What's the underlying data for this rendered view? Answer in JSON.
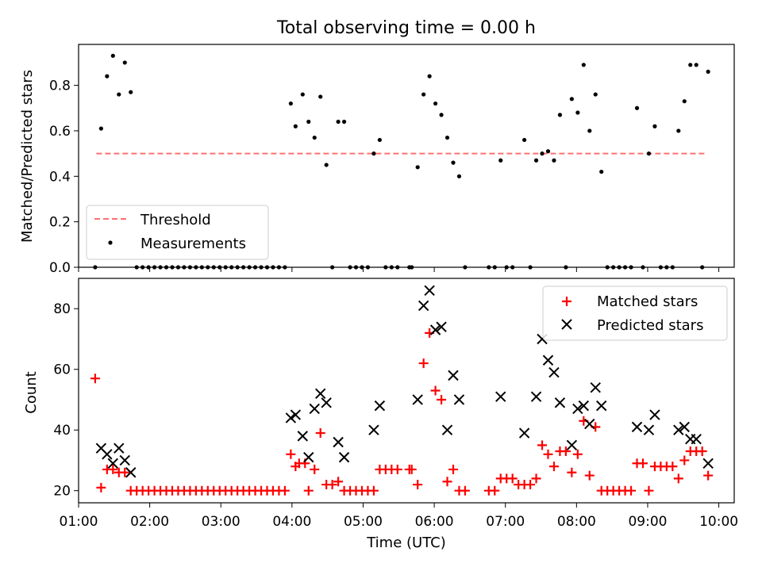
{
  "chart_data": [
    {
      "type": "scatter",
      "title": "Total observing time = 0.00 h",
      "xlabel": "",
      "ylabel": "Matched/Predicted stars",
      "xlim": [
        "01:00",
        "10:13"
      ],
      "ylim": [
        0,
        0.98
      ],
      "yticks": [
        0.0,
        0.2,
        0.4,
        0.6,
        0.8
      ],
      "ytick_labels": [
        "0.0",
        "0.2",
        "0.4",
        "0.6",
        "0.8"
      ],
      "legend": {
        "position": "lower-left",
        "entries": [
          "Threshold",
          "Measurements"
        ]
      },
      "threshold": {
        "name": "Threshold",
        "value": 0.5,
        "x_range": [
          "01:15",
          "09:50"
        ],
        "color": "#ff7070",
        "style": "dashed"
      },
      "series": [
        {
          "name": "Measurements",
          "color": "#000000",
          "marker": "dot",
          "points": [
            [
              "01:14",
              0.0
            ],
            [
              "01:19",
              0.61
            ],
            [
              "01:24",
              0.84
            ],
            [
              "01:29",
              0.93
            ],
            [
              "01:34",
              0.76
            ],
            [
              "01:39",
              0.9
            ],
            [
              "01:44",
              0.77
            ],
            [
              "01:49",
              0.0
            ],
            [
              "01:54",
              0.0
            ],
            [
              "01:59",
              0.0
            ],
            [
              "02:04",
              0.0
            ],
            [
              "02:09",
              0.0
            ],
            [
              "02:14",
              0.0
            ],
            [
              "02:19",
              0.0
            ],
            [
              "02:24",
              0.0
            ],
            [
              "02:29",
              0.0
            ],
            [
              "02:34",
              0.0
            ],
            [
              "02:39",
              0.0
            ],
            [
              "02:44",
              0.0
            ],
            [
              "02:49",
              0.0
            ],
            [
              "02:54",
              0.0
            ],
            [
              "02:59",
              0.0
            ],
            [
              "03:04",
              0.0
            ],
            [
              "03:09",
              0.0
            ],
            [
              "03:14",
              0.0
            ],
            [
              "03:19",
              0.0
            ],
            [
              "03:24",
              0.0
            ],
            [
              "03:29",
              0.0
            ],
            [
              "03:34",
              0.0
            ],
            [
              "03:39",
              0.0
            ],
            [
              "03:44",
              0.0
            ],
            [
              "03:49",
              0.0
            ],
            [
              "03:54",
              0.0
            ],
            [
              "03:59",
              0.72
            ],
            [
              "04:03",
              0.62
            ],
            [
              "04:09",
              0.76
            ],
            [
              "04:14",
              0.64
            ],
            [
              "04:19",
              0.57
            ],
            [
              "04:24",
              0.75
            ],
            [
              "04:29",
              0.45
            ],
            [
              "04:34",
              0.0
            ],
            [
              "04:39",
              0.64
            ],
            [
              "04:44",
              0.64
            ],
            [
              "04:49",
              0.0
            ],
            [
              "04:54",
              0.0
            ],
            [
              "04:59",
              0.0
            ],
            [
              "05:04",
              0.0
            ],
            [
              "05:09",
              0.5
            ],
            [
              "05:14",
              0.56
            ],
            [
              "05:19",
              0.0
            ],
            [
              "05:24",
              0.0
            ],
            [
              "05:29",
              0.0
            ],
            [
              "05:39",
              0.0
            ],
            [
              "05:41",
              0.0
            ],
            [
              "05:46",
              0.44
            ],
            [
              "05:51",
              0.76
            ],
            [
              "05:56",
              0.84
            ],
            [
              "06:01",
              0.72
            ],
            [
              "06:06",
              0.67
            ],
            [
              "06:11",
              0.57
            ],
            [
              "06:16",
              0.46
            ],
            [
              "06:21",
              0.4
            ],
            [
              "06:26",
              0.0
            ],
            [
              "06:46",
              0.0
            ],
            [
              "06:51",
              0.0
            ],
            [
              "06:56",
              0.47
            ],
            [
              "07:01",
              0.0
            ],
            [
              "07:06",
              0.0
            ],
            [
              "07:16",
              0.56
            ],
            [
              "07:21",
              0.0
            ],
            [
              "07:26",
              0.47
            ],
            [
              "07:31",
              0.5
            ],
            [
              "07:36",
              0.51
            ],
            [
              "07:41",
              0.47
            ],
            [
              "07:46",
              0.67
            ],
            [
              "07:51",
              0.0
            ],
            [
              "07:56",
              0.74
            ],
            [
              "08:01",
              0.68
            ],
            [
              "08:06",
              0.89
            ],
            [
              "08:11",
              0.6
            ],
            [
              "08:16",
              0.76
            ],
            [
              "08:21",
              0.42
            ],
            [
              "08:26",
              0.0
            ],
            [
              "08:31",
              0.0
            ],
            [
              "08:36",
              0.0
            ],
            [
              "08:41",
              0.0
            ],
            [
              "08:46",
              0.0
            ],
            [
              "08:51",
              0.7
            ],
            [
              "08:56",
              0.0
            ],
            [
              "09:01",
              0.5
            ],
            [
              "09:06",
              0.62
            ],
            [
              "09:11",
              0.0
            ],
            [
              "09:16",
              0.0
            ],
            [
              "09:21",
              0.0
            ],
            [
              "09:26",
              0.6
            ],
            [
              "09:31",
              0.73
            ],
            [
              "09:36",
              0.89
            ],
            [
              "09:41",
              0.89
            ],
            [
              "09:46",
              0.0
            ],
            [
              "09:51",
              0.86
            ]
          ]
        }
      ]
    },
    {
      "type": "scatter",
      "title": "",
      "xlabel": "Time (UTC)",
      "ylabel": "Count",
      "xlim": [
        "01:00",
        "10:13"
      ],
      "ylim": [
        16,
        90
      ],
      "xticks": [
        "01:00",
        "02:00",
        "03:00",
        "04:00",
        "05:00",
        "06:00",
        "07:00",
        "08:00",
        "09:00",
        "10:00"
      ],
      "yticks": [
        20,
        40,
        60,
        80
      ],
      "ytick_labels": [
        "20",
        "40",
        "60",
        "80"
      ],
      "legend": {
        "position": "top-right",
        "entries": [
          "Matched stars",
          "Predicted stars"
        ]
      },
      "series": [
        {
          "name": "Matched stars",
          "color": "#ff0000",
          "marker": "plus",
          "points": [
            [
              "01:14",
              57
            ],
            [
              "01:19",
              21
            ],
            [
              "01:24",
              27
            ],
            [
              "01:29",
              27
            ],
            [
              "01:34",
              26
            ],
            [
              "01:39",
              26
            ],
            [
              "01:44",
              20
            ],
            [
              "01:49",
              20
            ],
            [
              "01:54",
              20
            ],
            [
              "01:59",
              20
            ],
            [
              "02:04",
              20
            ],
            [
              "02:09",
              20
            ],
            [
              "02:14",
              20
            ],
            [
              "02:19",
              20
            ],
            [
              "02:24",
              20
            ],
            [
              "02:29",
              20
            ],
            [
              "02:34",
              20
            ],
            [
              "02:39",
              20
            ],
            [
              "02:44",
              20
            ],
            [
              "02:49",
              20
            ],
            [
              "02:54",
              20
            ],
            [
              "02:59",
              20
            ],
            [
              "03:04",
              20
            ],
            [
              "03:09",
              20
            ],
            [
              "03:14",
              20
            ],
            [
              "03:19",
              20
            ],
            [
              "03:24",
              20
            ],
            [
              "03:29",
              20
            ],
            [
              "03:34",
              20
            ],
            [
              "03:39",
              20
            ],
            [
              "03:44",
              20
            ],
            [
              "03:49",
              20
            ],
            [
              "03:54",
              20
            ],
            [
              "03:59",
              32
            ],
            [
              "04:03",
              28
            ],
            [
              "04:06",
              29
            ],
            [
              "04:11",
              29
            ],
            [
              "04:14",
              20
            ],
            [
              "04:19",
              27
            ],
            [
              "04:24",
              39
            ],
            [
              "04:29",
              22
            ],
            [
              "04:34",
              22
            ],
            [
              "04:39",
              23
            ],
            [
              "04:44",
              20
            ],
            [
              "04:49",
              20
            ],
            [
              "04:54",
              20
            ],
            [
              "04:59",
              20
            ],
            [
              "05:04",
              20
            ],
            [
              "05:09",
              20
            ],
            [
              "05:14",
              27
            ],
            [
              "05:19",
              27
            ],
            [
              "05:24",
              27
            ],
            [
              "05:29",
              27
            ],
            [
              "05:39",
              27
            ],
            [
              "05:41",
              27
            ],
            [
              "05:46",
              22
            ],
            [
              "05:51",
              62
            ],
            [
              "05:56",
              72
            ],
            [
              "06:01",
              53
            ],
            [
              "06:06",
              50
            ],
            [
              "06:11",
              23
            ],
            [
              "06:16",
              27
            ],
            [
              "06:21",
              20
            ],
            [
              "06:26",
              20
            ],
            [
              "06:46",
              20
            ],
            [
              "06:51",
              20
            ],
            [
              "06:56",
              24
            ],
            [
              "07:01",
              24
            ],
            [
              "07:06",
              24
            ],
            [
              "07:11",
              22
            ],
            [
              "07:16",
              22
            ],
            [
              "07:21",
              22
            ],
            [
              "07:26",
              24
            ],
            [
              "07:31",
              35
            ],
            [
              "07:36",
              32
            ],
            [
              "07:41",
              28
            ],
            [
              "07:46",
              33
            ],
            [
              "07:51",
              33
            ],
            [
              "07:56",
              26
            ],
            [
              "08:01",
              32
            ],
            [
              "08:06",
              43
            ],
            [
              "08:11",
              25
            ],
            [
              "08:16",
              41
            ],
            [
              "08:21",
              20
            ],
            [
              "08:26",
              20
            ],
            [
              "08:31",
              20
            ],
            [
              "08:36",
              20
            ],
            [
              "08:41",
              20
            ],
            [
              "08:46",
              20
            ],
            [
              "08:51",
              29
            ],
            [
              "08:56",
              29
            ],
            [
              "09:01",
              20
            ],
            [
              "09:06",
              28
            ],
            [
              "09:11",
              28
            ],
            [
              "09:16",
              28
            ],
            [
              "09:21",
              28
            ],
            [
              "09:26",
              24
            ],
            [
              "09:31",
              30
            ],
            [
              "09:36",
              33
            ],
            [
              "09:41",
              33
            ],
            [
              "09:46",
              33
            ],
            [
              "09:51",
              25
            ]
          ]
        },
        {
          "name": "Predicted stars",
          "color": "#000000",
          "marker": "x",
          "points": [
            [
              "01:19",
              34
            ],
            [
              "01:24",
              32
            ],
            [
              "01:29",
              29
            ],
            [
              "01:34",
              34
            ],
            [
              "01:39",
              30
            ],
            [
              "01:44",
              26
            ],
            [
              "03:59",
              44
            ],
            [
              "04:03",
              45
            ],
            [
              "04:09",
              38
            ],
            [
              "04:14",
              31
            ],
            [
              "04:19",
              47
            ],
            [
              "04:24",
              52
            ],
            [
              "04:29",
              49
            ],
            [
              "04:39",
              36
            ],
            [
              "04:44",
              31
            ],
            [
              "05:09",
              40
            ],
            [
              "05:14",
              48
            ],
            [
              "05:46",
              50
            ],
            [
              "05:51",
              81
            ],
            [
              "05:56",
              86
            ],
            [
              "06:01",
              73
            ],
            [
              "06:06",
              74
            ],
            [
              "06:11",
              40
            ],
            [
              "06:16",
              58
            ],
            [
              "06:21",
              50
            ],
            [
              "06:56",
              51
            ],
            [
              "07:16",
              39
            ],
            [
              "07:26",
              51
            ],
            [
              "07:31",
              70
            ],
            [
              "07:36",
              63
            ],
            [
              "07:41",
              59
            ],
            [
              "07:46",
              49
            ],
            [
              "07:56",
              35
            ],
            [
              "08:01",
              47
            ],
            [
              "08:06",
              48
            ],
            [
              "08:11",
              42
            ],
            [
              "08:16",
              54
            ],
            [
              "08:21",
              48
            ],
            [
              "08:51",
              41
            ],
            [
              "09:01",
              40
            ],
            [
              "09:06",
              45
            ],
            [
              "09:26",
              40
            ],
            [
              "09:31",
              41
            ],
            [
              "09:36",
              37
            ],
            [
              "09:41",
              37
            ],
            [
              "09:51",
              29
            ]
          ]
        }
      ]
    }
  ]
}
